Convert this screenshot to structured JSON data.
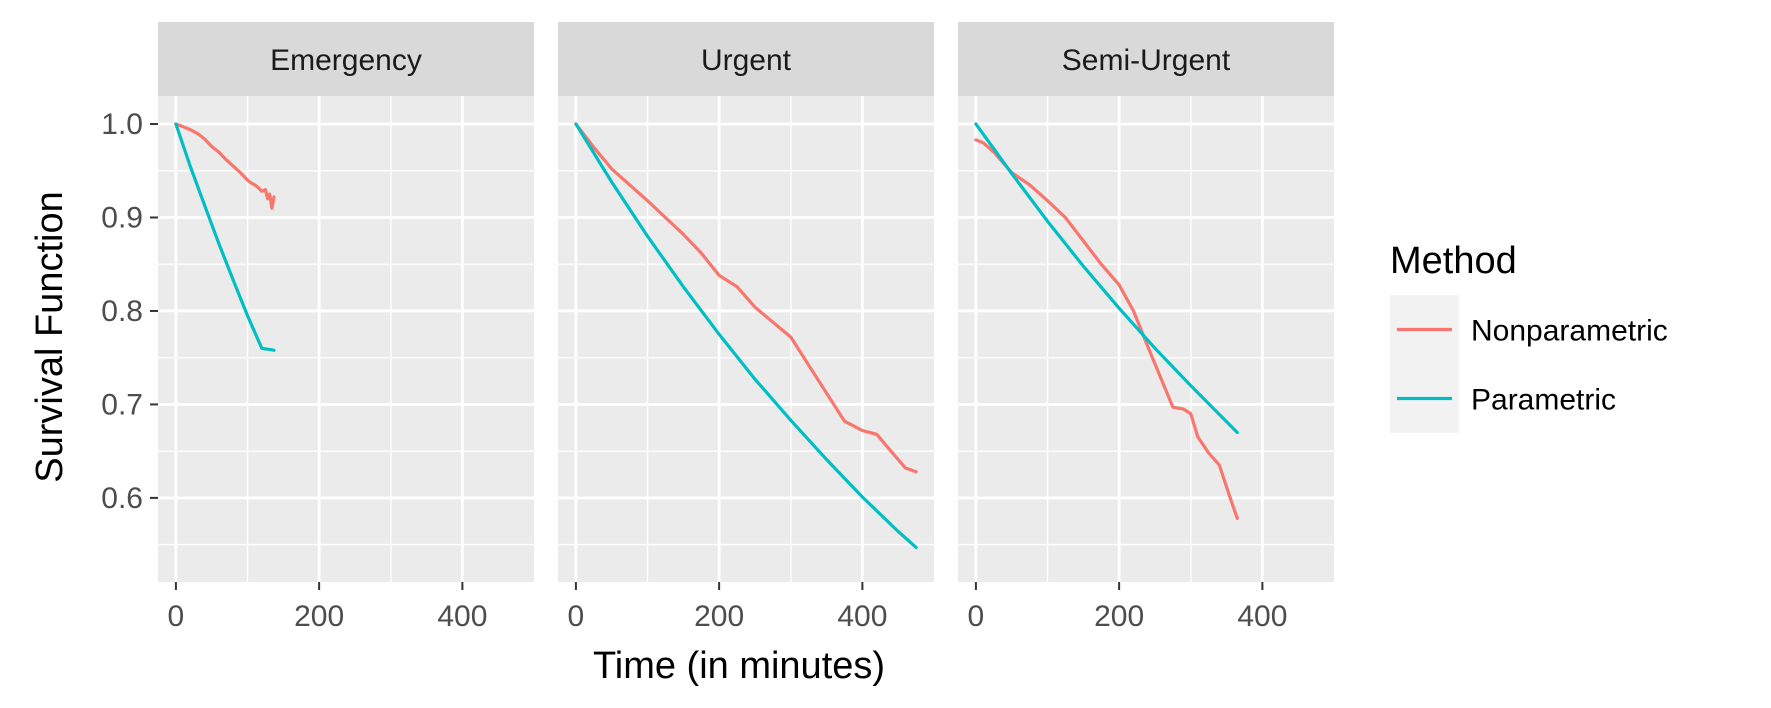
{
  "chart_data": {
    "type": "line",
    "facet_by": "panel",
    "panels": [
      "Emergency",
      "Urgent",
      "Semi-Urgent"
    ],
    "xlabel": "Time (in minutes)",
    "ylabel": "Survival Function",
    "xlim": [
      -25,
      500
    ],
    "ylim": [
      0.51,
      1.03
    ],
    "x_ticks": [
      0,
      200,
      400
    ],
    "y_ticks": [
      0.6,
      0.7,
      0.8,
      0.9,
      1.0
    ],
    "y_tick_labels": [
      "0.6",
      "0.7",
      "0.8",
      "0.9",
      "1.0"
    ],
    "grid": true,
    "legend": {
      "title": "Method",
      "position": "right",
      "entries": [
        "Nonparametric",
        "Parametric"
      ]
    },
    "colors": {
      "Nonparametric": "#F8766D",
      "Parametric": "#00BFC4"
    },
    "series": [
      {
        "panel": "Emergency",
        "name": "Nonparametric",
        "x": [
          0,
          10,
          20,
          30,
          40,
          50,
          60,
          70,
          80,
          90,
          100,
          105,
          110,
          115,
          120,
          125,
          128,
          131,
          134,
          137
        ],
        "y": [
          1.0,
          0.997,
          0.994,
          0.99,
          0.984,
          0.976,
          0.97,
          0.962,
          0.955,
          0.948,
          0.94,
          0.937,
          0.935,
          0.932,
          0.928,
          0.93,
          0.92,
          0.925,
          0.91,
          0.922
        ]
      },
      {
        "panel": "Emergency",
        "name": "Parametric",
        "x": [
          0,
          20,
          40,
          60,
          80,
          100,
          120,
          137
        ],
        "y": [
          1.0,
          0.955,
          0.913,
          0.872,
          0.833,
          0.795,
          0.76,
          0.758
        ]
      },
      {
        "panel": "Urgent",
        "name": "Nonparametric",
        "x": [
          0,
          25,
          50,
          75,
          100,
          125,
          150,
          175,
          200,
          225,
          250,
          275,
          300,
          325,
          350,
          375,
          400,
          420,
          440,
          460,
          475
        ],
        "y": [
          1.0,
          0.975,
          0.952,
          0.935,
          0.918,
          0.9,
          0.882,
          0.862,
          0.838,
          0.826,
          0.804,
          0.788,
          0.772,
          0.742,
          0.712,
          0.682,
          0.672,
          0.668,
          0.65,
          0.632,
          0.628
        ]
      },
      {
        "panel": "Urgent",
        "name": "Parametric",
        "x": [
          0,
          50,
          100,
          150,
          200,
          250,
          300,
          350,
          400,
          450,
          475
        ],
        "y": [
          1.0,
          0.938,
          0.88,
          0.826,
          0.775,
          0.727,
          0.683,
          0.641,
          0.601,
          0.564,
          0.547
        ]
      },
      {
        "panel": "Semi-Urgent",
        "name": "Nonparametric",
        "x": [
          0,
          10,
          25,
          50,
          75,
          100,
          125,
          150,
          175,
          200,
          220,
          240,
          260,
          275,
          290,
          300,
          310,
          325,
          340,
          355,
          365
        ],
        "y": [
          0.983,
          0.98,
          0.97,
          0.948,
          0.935,
          0.918,
          0.9,
          0.875,
          0.85,
          0.828,
          0.8,
          0.762,
          0.725,
          0.697,
          0.695,
          0.69,
          0.665,
          0.648,
          0.635,
          0.6,
          0.578
        ]
      },
      {
        "panel": "Semi-Urgent",
        "name": "Parametric",
        "x": [
          0,
          50,
          100,
          150,
          200,
          250,
          300,
          365
        ],
        "y": [
          1.0,
          0.947,
          0.896,
          0.848,
          0.803,
          0.76,
          0.72,
          0.67
        ]
      }
    ]
  }
}
